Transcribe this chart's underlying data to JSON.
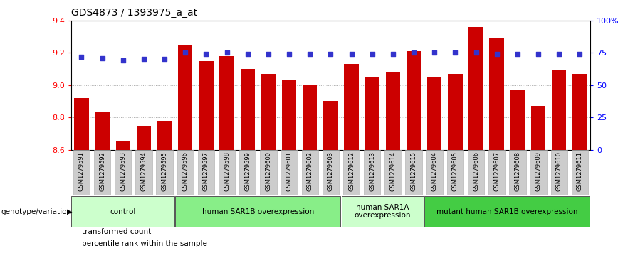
{
  "title": "GDS4873 / 1393975_a_at",
  "samples": [
    "GSM1279591",
    "GSM1279592",
    "GSM1279593",
    "GSM1279594",
    "GSM1279595",
    "GSM1279596",
    "GSM1279597",
    "GSM1279598",
    "GSM1279599",
    "GSM1279600",
    "GSM1279601",
    "GSM1279602",
    "GSM1279603",
    "GSM1279612",
    "GSM1279613",
    "GSM1279614",
    "GSM1279615",
    "GSM1279604",
    "GSM1279605",
    "GSM1279606",
    "GSM1279607",
    "GSM1279608",
    "GSM1279609",
    "GSM1279610",
    "GSM1279611"
  ],
  "transformed_count": [
    8.92,
    8.83,
    8.65,
    8.75,
    8.78,
    9.25,
    9.15,
    9.18,
    9.1,
    9.07,
    9.03,
    9.0,
    8.9,
    9.13,
    9.05,
    9.08,
    9.21,
    9.05,
    9.07,
    9.36,
    9.29,
    8.97,
    8.87,
    9.09,
    9.07
  ],
  "percentile_rank": [
    72,
    71,
    69,
    70,
    70,
    75,
    74,
    75,
    74,
    74,
    74,
    74,
    74,
    74,
    74,
    74,
    75,
    75,
    75,
    75,
    74,
    74,
    74,
    74,
    74
  ],
  "bar_color": "#cc0000",
  "dot_color": "#3333cc",
  "ylim_left": [
    8.6,
    9.4
  ],
  "ylim_right": [
    0,
    100
  ],
  "yticks_left": [
    8.6,
    8.8,
    9.0,
    9.2,
    9.4
  ],
  "yticks_right": [
    0,
    25,
    50,
    75,
    100
  ],
  "ytick_labels_right": [
    "0",
    "25",
    "50",
    "75",
    "100%"
  ],
  "groups": [
    {
      "label": "control",
      "start": 0,
      "end": 4,
      "color": "#ccffcc"
    },
    {
      "label": "human SAR1B overexpression",
      "start": 5,
      "end": 12,
      "color": "#88ee88"
    },
    {
      "label": "human SAR1A\noverexpression",
      "start": 13,
      "end": 16,
      "color": "#ccffcc"
    },
    {
      "label": "mutant human SAR1B overexpression",
      "start": 17,
      "end": 24,
      "color": "#44cc44"
    }
  ],
  "genotype_label": "genotype/variation",
  "legend_items": [
    {
      "label": "transformed count",
      "color": "#cc0000"
    },
    {
      "label": "percentile rank within the sample",
      "color": "#3333cc"
    }
  ],
  "grid_color": "#aaaaaa",
  "background_color": "#ffffff",
  "plot_bg_color": "#ffffff",
  "tick_bg_color": "#cccccc",
  "tick_border_color": "#aaaaaa"
}
